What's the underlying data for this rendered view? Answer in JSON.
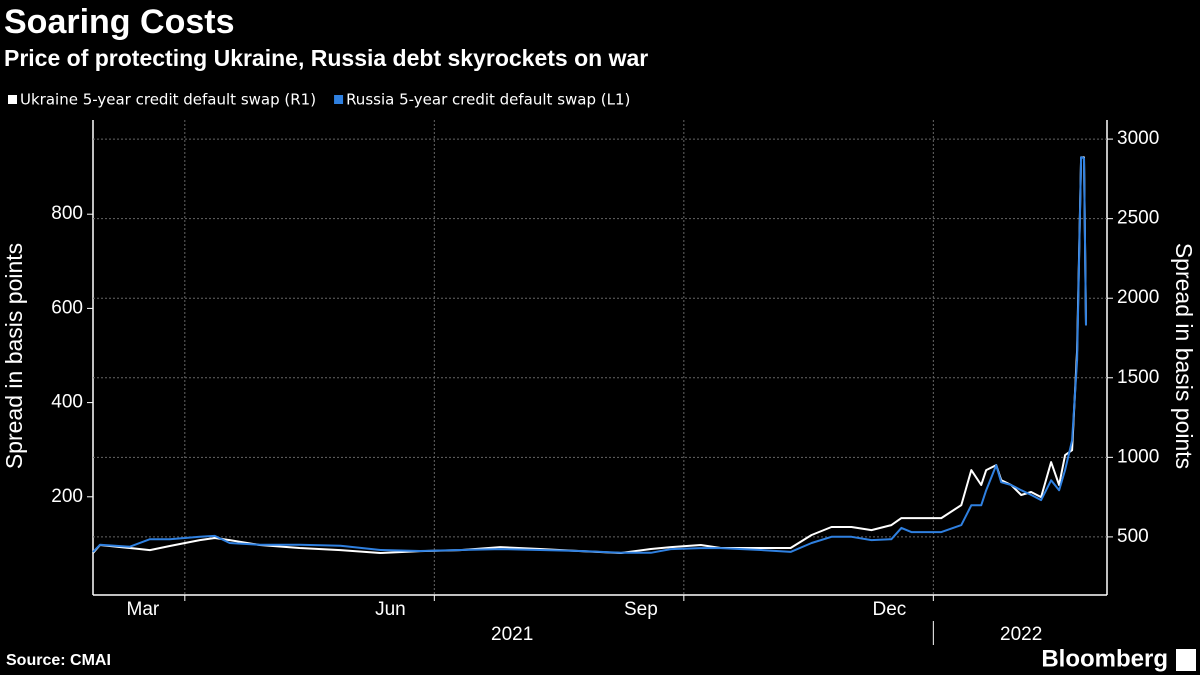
{
  "chart_data": {
    "type": "line",
    "title": "Soaring Costs",
    "subtitle": "Price of protecting Ukraine, Russia debt skyrockets on war",
    "source": "Source: CMAI",
    "brand": "Bloomberg",
    "ylabel": "Spread in basis points",
    "y2label": "Spread in basis points",
    "x": [
      2021.158,
      2021.165,
      2021.195,
      2021.215,
      2021.235,
      2021.265,
      2021.28,
      2021.295,
      2021.325,
      2021.365,
      2021.406,
      2021.446,
      2021.486,
      2021.526,
      2021.566,
      2021.606,
      2021.647,
      2021.687,
      2021.717,
      2021.737,
      2021.767,
      2021.787,
      2021.827,
      2021.857,
      2021.878,
      2021.898,
      2021.918,
      2021.938,
      2021.958,
      2021.968,
      2021.978,
      2022.008,
      2022.028,
      2022.038,
      2022.048,
      2022.053,
      2022.063,
      2022.068,
      2022.078,
      2022.088,
      2022.098,
      2022.108,
      2022.118,
      2022.126,
      2022.132,
      2022.139,
      2022.144,
      2022.148,
      2022.151,
      2022.153
    ],
    "series": [
      {
        "name": "Ukraine 5-year credit default swap (R1)",
        "color": "#ffffff",
        "axis": "y2",
        "values": [
          399,
          449,
          430,
          417,
          443,
          480,
          493,
          480,
          449,
          430,
          417,
          399,
          411,
          417,
          436,
          424,
          411,
          399,
          424,
          436,
          449,
          430,
          430,
          430,
          512,
          562,
          562,
          543,
          574,
          618,
          618,
          618,
          700,
          920,
          826,
          920,
          951,
          857,
          826,
          763,
          782,
          750,
          970,
          826,
          1014,
          1045,
          1673,
          2885,
          2885,
          1830
        ]
      },
      {
        "name": "Russia 5-year credit default swap (L1)",
        "color": "#2f80e0",
        "axis": "y",
        "values": [
          83,
          98,
          94,
          110,
          110,
          115,
          117,
          102,
          98,
          98,
          96,
          87,
          85,
          87,
          89,
          87,
          85,
          81,
          81,
          89,
          91,
          91,
          87,
          83,
          102,
          115,
          115,
          108,
          110,
          134,
          125,
          125,
          140,
          182,
          182,
          214,
          267,
          231,
          225,
          214,
          204,
          193,
          235,
          214,
          257,
          320,
          490,
          921,
          919,
          564
        ]
      }
    ],
    "xlim": [
      2021.158,
      2022.174
    ],
    "xticks": [
      {
        "value": 2021.208,
        "label": "Mar"
      },
      {
        "value": 2021.456,
        "label": "Jun"
      },
      {
        "value": 2021.707,
        "label": "Sep"
      },
      {
        "value": 2021.956,
        "label": "Dec"
      }
    ],
    "xyears": [
      {
        "value": 2021.578,
        "label": "2021"
      },
      {
        "value": 2022.088,
        "label": "2022"
      }
    ],
    "xgrid": [
      2021.25,
      2021.5,
      2021.75,
      2022
    ],
    "ylim": [
      0,
      1000
    ],
    "yticks": [
      200,
      400,
      600,
      800
    ],
    "y2lim": [
      160,
      3120
    ],
    "y2ticks": [
      500,
      1000,
      1500,
      2000,
      2500,
      3000
    ],
    "grid": true,
    "legend": "top-left"
  }
}
